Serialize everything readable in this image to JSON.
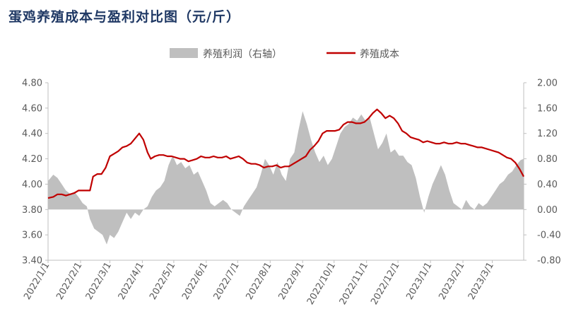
{
  "title": "蛋鸡养殖成本与盈利对比图（元/斤）",
  "chart_data": {
    "type": "line",
    "title": "蛋鸡养殖成本与盈利对比图（元/斤）",
    "x_ticks": [
      "2022/1/1",
      "2022/2/1",
      "2022/3/1",
      "2022/4/1",
      "2022/5/1",
      "2022/6/1",
      "2022/7/1",
      "2022/8/1",
      "2022/9/1",
      "2022/10/1",
      "2022/11/1",
      "2022/12/1",
      "2023/1/1",
      "2023/2/1",
      "2023/3/1"
    ],
    "x_range": [
      "2022-01-01",
      "2023-03-31"
    ],
    "left_axis": {
      "min": 3.4,
      "max": 4.8,
      "ticks": [
        "3.40",
        "3.60",
        "3.80",
        "4.00",
        "4.20",
        "4.40",
        "4.60",
        "4.80"
      ]
    },
    "right_axis": {
      "min": -0.8,
      "max": 2.0,
      "ticks": [
        "-0.80",
        "-0.40",
        "0.00",
        "0.40",
        "0.80",
        "1.20",
        "1.60",
        "2.00"
      ]
    },
    "legend_position": "top",
    "series": [
      {
        "name": "养殖利润（右轴）",
        "type": "area",
        "axis": "right",
        "color": "#bfbfbf",
        "points": [
          [
            "2022-01-01",
            0.45
          ],
          [
            "2022-01-06",
            0.55
          ],
          [
            "2022-01-10",
            0.5
          ],
          [
            "2022-01-14",
            0.4
          ],
          [
            "2022-01-18",
            0.3
          ],
          [
            "2022-01-22",
            0.25
          ],
          [
            "2022-01-26",
            0.28
          ],
          [
            "2022-01-30",
            0.2
          ],
          [
            "2022-02-03",
            0.1
          ],
          [
            "2022-02-07",
            0.05
          ],
          [
            "2022-02-10",
            -0.15
          ],
          [
            "2022-02-14",
            -0.3
          ],
          [
            "2022-02-18",
            -0.35
          ],
          [
            "2022-02-22",
            -0.4
          ],
          [
            "2022-02-26",
            -0.55
          ],
          [
            "2022-03-01",
            -0.4
          ],
          [
            "2022-03-05",
            -0.45
          ],
          [
            "2022-03-09",
            -0.35
          ],
          [
            "2022-03-13",
            -0.2
          ],
          [
            "2022-03-17",
            -0.05
          ],
          [
            "2022-03-21",
            -0.15
          ],
          [
            "2022-03-25",
            -0.05
          ],
          [
            "2022-03-29",
            -0.1
          ],
          [
            "2022-04-02",
            0.0
          ],
          [
            "2022-04-06",
            0.05
          ],
          [
            "2022-04-10",
            0.2
          ],
          [
            "2022-04-14",
            0.3
          ],
          [
            "2022-04-18",
            0.35
          ],
          [
            "2022-04-22",
            0.45
          ],
          [
            "2022-04-26",
            0.7
          ],
          [
            "2022-04-30",
            0.85
          ],
          [
            "2022-05-04",
            0.7
          ],
          [
            "2022-05-08",
            0.75
          ],
          [
            "2022-05-12",
            0.65
          ],
          [
            "2022-05-16",
            0.7
          ],
          [
            "2022-05-20",
            0.55
          ],
          [
            "2022-05-24",
            0.6
          ],
          [
            "2022-05-28",
            0.45
          ],
          [
            "2022-06-01",
            0.3
          ],
          [
            "2022-06-05",
            0.1
          ],
          [
            "2022-06-09",
            0.05
          ],
          [
            "2022-06-13",
            0.1
          ],
          [
            "2022-06-17",
            0.15
          ],
          [
            "2022-06-21",
            0.1
          ],
          [
            "2022-06-25",
            0.0
          ],
          [
            "2022-06-29",
            -0.05
          ],
          [
            "2022-07-03",
            -0.1
          ],
          [
            "2022-07-07",
            0.05
          ],
          [
            "2022-07-11",
            0.15
          ],
          [
            "2022-07-15",
            0.25
          ],
          [
            "2022-07-19",
            0.35
          ],
          [
            "2022-07-23",
            0.55
          ],
          [
            "2022-07-27",
            0.8
          ],
          [
            "2022-07-31",
            0.7
          ],
          [
            "2022-08-04",
            0.55
          ],
          [
            "2022-08-08",
            0.75
          ],
          [
            "2022-08-12",
            0.55
          ],
          [
            "2022-08-16",
            0.45
          ],
          [
            "2022-08-20",
            0.8
          ],
          [
            "2022-08-24",
            0.9
          ],
          [
            "2022-08-28",
            1.25
          ],
          [
            "2022-09-01",
            1.55
          ],
          [
            "2022-09-05",
            1.35
          ],
          [
            "2022-09-09",
            1.1
          ],
          [
            "2022-09-13",
            0.9
          ],
          [
            "2022-09-17",
            0.75
          ],
          [
            "2022-09-21",
            0.85
          ],
          [
            "2022-09-25",
            0.7
          ],
          [
            "2022-09-29",
            0.8
          ],
          [
            "2022-10-03",
            1.0
          ],
          [
            "2022-10-07",
            1.2
          ],
          [
            "2022-10-11",
            1.3
          ],
          [
            "2022-10-15",
            1.35
          ],
          [
            "2022-10-19",
            1.45
          ],
          [
            "2022-10-23",
            1.4
          ],
          [
            "2022-10-27",
            1.5
          ],
          [
            "2022-10-31",
            1.4
          ],
          [
            "2022-11-04",
            1.45
          ],
          [
            "2022-11-08",
            1.2
          ],
          [
            "2022-11-12",
            0.95
          ],
          [
            "2022-11-16",
            1.05
          ],
          [
            "2022-11-20",
            1.2
          ],
          [
            "2022-11-24",
            0.9
          ],
          [
            "2022-11-28",
            0.95
          ],
          [
            "2022-12-02",
            0.85
          ],
          [
            "2022-12-06",
            0.85
          ],
          [
            "2022-12-10",
            0.75
          ],
          [
            "2022-12-14",
            0.7
          ],
          [
            "2022-12-18",
            0.5
          ],
          [
            "2022-12-22",
            0.2
          ],
          [
            "2022-12-26",
            -0.05
          ],
          [
            "2022-12-30",
            0.2
          ],
          [
            "2023-01-03",
            0.4
          ],
          [
            "2023-01-07",
            0.55
          ],
          [
            "2023-01-11",
            0.7
          ],
          [
            "2023-01-15",
            0.55
          ],
          [
            "2023-01-19",
            0.3
          ],
          [
            "2023-01-23",
            0.1
          ],
          [
            "2023-01-27",
            0.05
          ],
          [
            "2023-01-31",
            0.0
          ],
          [
            "2023-02-04",
            0.15
          ],
          [
            "2023-02-08",
            0.05
          ],
          [
            "2023-02-12",
            0.0
          ],
          [
            "2023-02-16",
            0.1
          ],
          [
            "2023-02-20",
            0.05
          ],
          [
            "2023-02-24",
            0.1
          ],
          [
            "2023-02-28",
            0.2
          ],
          [
            "2023-03-04",
            0.3
          ],
          [
            "2023-03-08",
            0.4
          ],
          [
            "2023-03-12",
            0.45
          ],
          [
            "2023-03-16",
            0.55
          ],
          [
            "2023-03-20",
            0.6
          ],
          [
            "2023-03-24",
            0.7
          ],
          [
            "2023-03-28",
            0.78
          ],
          [
            "2023-03-31",
            0.8
          ]
        ]
      },
      {
        "name": "养殖成本",
        "type": "line",
        "axis": "left",
        "color": "#c00000",
        "points": [
          [
            "2022-01-01",
            3.89
          ],
          [
            "2022-01-06",
            3.9
          ],
          [
            "2022-01-10",
            3.92
          ],
          [
            "2022-01-14",
            3.92
          ],
          [
            "2022-01-18",
            3.91
          ],
          [
            "2022-01-22",
            3.92
          ],
          [
            "2022-01-26",
            3.93
          ],
          [
            "2022-01-30",
            3.95
          ],
          [
            "2022-02-03",
            3.95
          ],
          [
            "2022-02-07",
            3.95
          ],
          [
            "2022-02-10",
            3.95
          ],
          [
            "2022-02-13",
            4.06
          ],
          [
            "2022-02-17",
            4.08
          ],
          [
            "2022-02-21",
            4.08
          ],
          [
            "2022-02-25",
            4.13
          ],
          [
            "2022-03-01",
            4.22
          ],
          [
            "2022-03-05",
            4.24
          ],
          [
            "2022-03-09",
            4.26
          ],
          [
            "2022-03-13",
            4.29
          ],
          [
            "2022-03-17",
            4.3
          ],
          [
            "2022-03-21",
            4.32
          ],
          [
            "2022-03-25",
            4.36
          ],
          [
            "2022-03-29",
            4.4
          ],
          [
            "2022-04-02",
            4.35
          ],
          [
            "2022-04-06",
            4.25
          ],
          [
            "2022-04-09",
            4.2
          ],
          [
            "2022-04-13",
            4.22
          ],
          [
            "2022-04-17",
            4.23
          ],
          [
            "2022-04-21",
            4.23
          ],
          [
            "2022-04-25",
            4.22
          ],
          [
            "2022-04-29",
            4.22
          ],
          [
            "2022-05-03",
            4.21
          ],
          [
            "2022-05-07",
            4.2
          ],
          [
            "2022-05-11",
            4.2
          ],
          [
            "2022-05-15",
            4.18
          ],
          [
            "2022-05-19",
            4.19
          ],
          [
            "2022-05-23",
            4.2
          ],
          [
            "2022-05-27",
            4.22
          ],
          [
            "2022-05-31",
            4.21
          ],
          [
            "2022-06-04",
            4.21
          ],
          [
            "2022-06-08",
            4.22
          ],
          [
            "2022-06-12",
            4.21
          ],
          [
            "2022-06-16",
            4.21
          ],
          [
            "2022-06-20",
            4.22
          ],
          [
            "2022-06-24",
            4.2
          ],
          [
            "2022-06-28",
            4.21
          ],
          [
            "2022-07-02",
            4.22
          ],
          [
            "2022-07-06",
            4.2
          ],
          [
            "2022-07-10",
            4.17
          ],
          [
            "2022-07-14",
            4.16
          ],
          [
            "2022-07-18",
            4.16
          ],
          [
            "2022-07-22",
            4.15
          ],
          [
            "2022-07-26",
            4.13
          ],
          [
            "2022-07-30",
            4.14
          ],
          [
            "2022-08-03",
            4.14
          ],
          [
            "2022-08-07",
            4.15
          ],
          [
            "2022-08-11",
            4.13
          ],
          [
            "2022-08-15",
            4.14
          ],
          [
            "2022-08-19",
            4.14
          ],
          [
            "2022-08-23",
            4.16
          ],
          [
            "2022-08-27",
            4.18
          ],
          [
            "2022-08-31",
            4.2
          ],
          [
            "2022-09-04",
            4.22
          ],
          [
            "2022-09-08",
            4.27
          ],
          [
            "2022-09-12",
            4.3
          ],
          [
            "2022-09-16",
            4.34
          ],
          [
            "2022-09-20",
            4.4
          ],
          [
            "2022-09-24",
            4.42
          ],
          [
            "2022-09-28",
            4.42
          ],
          [
            "2022-10-02",
            4.42
          ],
          [
            "2022-10-06",
            4.43
          ],
          [
            "2022-10-10",
            4.47
          ],
          [
            "2022-10-14",
            4.49
          ],
          [
            "2022-10-18",
            4.49
          ],
          [
            "2022-10-22",
            4.48
          ],
          [
            "2022-10-26",
            4.48
          ],
          [
            "2022-10-30",
            4.49
          ],
          [
            "2022-11-03",
            4.52
          ],
          [
            "2022-11-07",
            4.56
          ],
          [
            "2022-11-11",
            4.59
          ],
          [
            "2022-11-15",
            4.56
          ],
          [
            "2022-11-19",
            4.52
          ],
          [
            "2022-11-23",
            4.54
          ],
          [
            "2022-11-27",
            4.52
          ],
          [
            "2022-12-01",
            4.48
          ],
          [
            "2022-12-05",
            4.42
          ],
          [
            "2022-12-09",
            4.4
          ],
          [
            "2022-12-13",
            4.37
          ],
          [
            "2022-12-17",
            4.36
          ],
          [
            "2022-12-21",
            4.35
          ],
          [
            "2022-12-25",
            4.33
          ],
          [
            "2022-12-29",
            4.34
          ],
          [
            "2023-01-02",
            4.33
          ],
          [
            "2023-01-06",
            4.32
          ],
          [
            "2023-01-10",
            4.32
          ],
          [
            "2023-01-14",
            4.33
          ],
          [
            "2023-01-18",
            4.32
          ],
          [
            "2023-01-22",
            4.32
          ],
          [
            "2023-01-26",
            4.33
          ],
          [
            "2023-01-30",
            4.32
          ],
          [
            "2023-02-03",
            4.32
          ],
          [
            "2023-02-07",
            4.31
          ],
          [
            "2023-02-11",
            4.3
          ],
          [
            "2023-02-15",
            4.29
          ],
          [
            "2023-02-19",
            4.29
          ],
          [
            "2023-02-23",
            4.28
          ],
          [
            "2023-02-27",
            4.27
          ],
          [
            "2023-03-03",
            4.26
          ],
          [
            "2023-03-07",
            4.25
          ],
          [
            "2023-03-11",
            4.23
          ],
          [
            "2023-03-15",
            4.21
          ],
          [
            "2023-03-19",
            4.2
          ],
          [
            "2023-03-23",
            4.17
          ],
          [
            "2023-03-27",
            4.12
          ],
          [
            "2023-03-31",
            4.06
          ]
        ]
      }
    ]
  }
}
